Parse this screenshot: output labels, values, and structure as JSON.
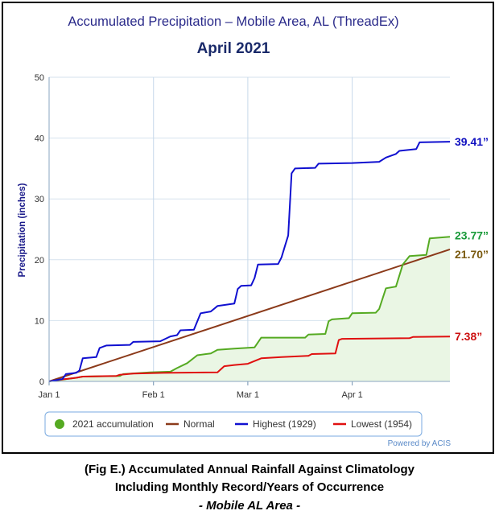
{
  "chart_data": {
    "type": "line",
    "title": "Accumulated Precipitation – Mobile Area, AL (ThreadEx)",
    "subtitle": "April 2021",
    "ylabel": "Precipitation (inches)",
    "xlabel": "",
    "ylim": [
      0,
      50
    ],
    "yticks": [
      0,
      10,
      20,
      30,
      40,
      50
    ],
    "xlim": [
      "2021-01-01",
      "2021-05-01"
    ],
    "xticks": [
      {
        "label": "Jan 1",
        "date": "2021-01-01"
      },
      {
        "label": "Feb 1",
        "date": "2021-02-01"
      },
      {
        "label": "Mar 1",
        "date": "2021-03-01"
      },
      {
        "label": "Apr 1",
        "date": "2021-04-01"
      }
    ],
    "grid": true,
    "legend_position": "bottom",
    "series": [
      {
        "name": "2021 accumulation",
        "color": "#55aa22",
        "fill": "#eaf6e4",
        "marker": "circle",
        "end_label": "23.77”",
        "end_label_color": "#1a9a3a",
        "points": [
          [
            "2021-01-01",
            0
          ],
          [
            "2021-01-09",
            0.6
          ],
          [
            "2021-01-11",
            0.8
          ],
          [
            "2021-01-22",
            0.9
          ],
          [
            "2021-01-23",
            1.2
          ],
          [
            "2021-01-31",
            1.5
          ],
          [
            "2021-02-06",
            1.6
          ],
          [
            "2021-02-08",
            2.2
          ],
          [
            "2021-02-11",
            3.0
          ],
          [
            "2021-02-14",
            4.3
          ],
          [
            "2021-02-18",
            4.6
          ],
          [
            "2021-02-20",
            5.2
          ],
          [
            "2021-02-25",
            5.4
          ],
          [
            "2021-03-03",
            5.6
          ],
          [
            "2021-03-05",
            7.2
          ],
          [
            "2021-03-18",
            7.2
          ],
          [
            "2021-03-19",
            7.7
          ],
          [
            "2021-03-24",
            7.8
          ],
          [
            "2021-03-25",
            9.9
          ],
          [
            "2021-03-26",
            10.2
          ],
          [
            "2021-03-31",
            10.4
          ],
          [
            "2021-04-01",
            11.2
          ],
          [
            "2021-04-08",
            11.3
          ],
          [
            "2021-04-09",
            11.9
          ],
          [
            "2021-04-11",
            15.3
          ],
          [
            "2021-04-14",
            15.6
          ],
          [
            "2021-04-16",
            19.2
          ],
          [
            "2021-04-18",
            20.6
          ],
          [
            "2021-04-23",
            20.8
          ],
          [
            "2021-04-24",
            23.5
          ],
          [
            "2021-04-30",
            23.77
          ]
        ]
      },
      {
        "name": "Normal",
        "color": "#8b3a1a",
        "end_label": "21.70”",
        "end_label_color": "#7a5a10",
        "points": [
          [
            "2021-01-01",
            0
          ],
          [
            "2021-04-30",
            21.7
          ]
        ]
      },
      {
        "name": "Highest (1929)",
        "color": "#1010d0",
        "end_label": "39.41”",
        "end_label_color": "#1010c0",
        "points": [
          [
            "2021-01-01",
            0
          ],
          [
            "2021-01-05",
            0.4
          ],
          [
            "2021-01-06",
            1.2
          ],
          [
            "2021-01-09",
            1.4
          ],
          [
            "2021-01-10",
            1.8
          ],
          [
            "2021-01-11",
            3.8
          ],
          [
            "2021-01-15",
            4.0
          ],
          [
            "2021-01-16",
            5.5
          ],
          [
            "2021-01-18",
            5.9
          ],
          [
            "2021-01-25",
            6.0
          ],
          [
            "2021-01-26",
            6.5
          ],
          [
            "2021-02-03",
            6.6
          ],
          [
            "2021-02-06",
            7.4
          ],
          [
            "2021-02-08",
            7.6
          ],
          [
            "2021-02-09",
            8.4
          ],
          [
            "2021-02-13",
            8.5
          ],
          [
            "2021-02-15",
            11.2
          ],
          [
            "2021-02-18",
            11.5
          ],
          [
            "2021-02-20",
            12.4
          ],
          [
            "2021-02-25",
            12.8
          ],
          [
            "2021-02-26",
            15.2
          ],
          [
            "2021-02-27",
            15.7
          ],
          [
            "2021-03-02",
            15.8
          ],
          [
            "2021-03-03",
            17.0
          ],
          [
            "2021-03-04",
            19.2
          ],
          [
            "2021-03-10",
            19.3
          ],
          [
            "2021-03-11",
            20.4
          ],
          [
            "2021-03-12",
            22.2
          ],
          [
            "2021-03-13",
            24.0
          ],
          [
            "2021-03-14",
            34.2
          ],
          [
            "2021-03-15",
            35.0
          ],
          [
            "2021-03-21",
            35.1
          ],
          [
            "2021-03-22",
            35.8
          ],
          [
            "2021-04-01",
            35.9
          ],
          [
            "2021-04-09",
            36.1
          ],
          [
            "2021-04-11",
            36.8
          ],
          [
            "2021-04-14",
            37.4
          ],
          [
            "2021-04-15",
            37.9
          ],
          [
            "2021-04-20",
            38.2
          ],
          [
            "2021-04-21",
            39.3
          ],
          [
            "2021-04-30",
            39.41
          ]
        ]
      },
      {
        "name": "Lowest (1954)",
        "color": "#e01010",
        "end_label": "7.38”",
        "end_label_color": "#cc1010",
        "points": [
          [
            "2021-01-01",
            0
          ],
          [
            "2021-01-03",
            0.2
          ],
          [
            "2021-01-06",
            0.4
          ],
          [
            "2021-01-09",
            0.6
          ],
          [
            "2021-01-11",
            0.8
          ],
          [
            "2021-01-21",
            0.9
          ],
          [
            "2021-01-22",
            1.1
          ],
          [
            "2021-01-26",
            1.3
          ],
          [
            "2021-02-04",
            1.4
          ],
          [
            "2021-02-20",
            1.5
          ],
          [
            "2021-02-22",
            2.5
          ],
          [
            "2021-02-25",
            2.7
          ],
          [
            "2021-03-01",
            2.9
          ],
          [
            "2021-03-05",
            3.8
          ],
          [
            "2021-03-11",
            4.0
          ],
          [
            "2021-03-19",
            4.2
          ],
          [
            "2021-03-20",
            4.5
          ],
          [
            "2021-03-27",
            4.6
          ],
          [
            "2021-03-28",
            6.8
          ],
          [
            "2021-03-29",
            7.0
          ],
          [
            "2021-04-18",
            7.1
          ],
          [
            "2021-04-19",
            7.3
          ],
          [
            "2021-04-30",
            7.38
          ]
        ]
      }
    ],
    "credit": "Powered by ACIS"
  },
  "caption": {
    "line1": "(Fig E.) Accumulated Annual Rainfall Against  Climatology",
    "line2": "Including Monthly Record/Years of Occurrence",
    "line3": "- Mobile AL Area -"
  }
}
